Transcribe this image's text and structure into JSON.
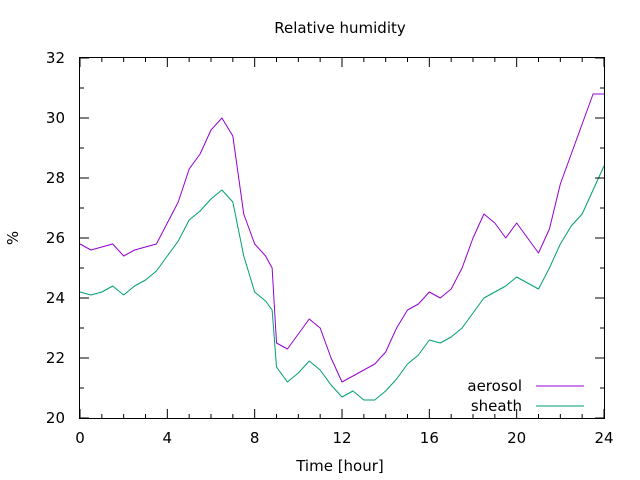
{
  "chart_data": {
    "type": "line",
    "title": "Relative humidity",
    "xlabel": "Time [hour]",
    "ylabel": "%",
    "xlim": [
      0,
      24
    ],
    "ylim": [
      20,
      32
    ],
    "x_ticks": [
      0,
      4,
      8,
      12,
      16,
      20,
      24
    ],
    "y_ticks": [
      20,
      22,
      24,
      26,
      28,
      30,
      32
    ],
    "grid": false,
    "legend_position": "bottom-right",
    "series": [
      {
        "name": "aerosol",
        "color": "#9400d3",
        "x": [
          0,
          0.5,
          1,
          1.5,
          2,
          2.5,
          3,
          3.5,
          4,
          4.5,
          5,
          5.5,
          6,
          6.5,
          7,
          7.5,
          8,
          8.5,
          8.8,
          9,
          9.5,
          10,
          10.5,
          11,
          11.5,
          12,
          12.5,
          13,
          13.5,
          14,
          14.5,
          15,
          15.5,
          16,
          16.5,
          17,
          17.5,
          18,
          18.5,
          19,
          19.5,
          20,
          20.5,
          21,
          21.5,
          22,
          22.5,
          23,
          23.5,
          24
        ],
        "values": [
          25.8,
          25.6,
          25.7,
          25.8,
          25.4,
          25.6,
          25.7,
          25.8,
          26.5,
          27.2,
          28.3,
          28.8,
          29.6,
          30.0,
          29.4,
          26.8,
          25.8,
          25.4,
          25.0,
          22.5,
          22.3,
          22.8,
          23.3,
          23.0,
          22.0,
          21.2,
          21.4,
          21.6,
          21.8,
          22.2,
          23.0,
          23.6,
          23.8,
          24.2,
          24.0,
          24.3,
          25.0,
          26.0,
          26.8,
          26.5,
          26.0,
          26.5,
          26.0,
          25.5,
          26.3,
          27.8,
          28.8,
          29.8,
          30.8,
          30.8
        ]
      },
      {
        "name": "sheath",
        "color": "#009e73",
        "x": [
          0,
          0.5,
          1,
          1.5,
          2,
          2.5,
          3,
          3.5,
          4,
          4.5,
          5,
          5.5,
          6,
          6.5,
          7,
          7.5,
          8,
          8.5,
          8.8,
          9,
          9.5,
          10,
          10.5,
          11,
          11.5,
          12,
          12.5,
          13,
          13.5,
          14,
          14.5,
          15,
          15.5,
          16,
          16.5,
          17,
          17.5,
          18,
          18.5,
          19,
          19.5,
          20,
          20.5,
          21,
          21.5,
          22,
          22.5,
          23,
          23.5,
          24
        ],
        "values": [
          24.2,
          24.1,
          24.2,
          24.4,
          24.1,
          24.4,
          24.6,
          24.9,
          25.4,
          25.9,
          26.6,
          26.9,
          27.3,
          27.6,
          27.2,
          25.4,
          24.2,
          23.9,
          23.6,
          21.7,
          21.2,
          21.5,
          21.9,
          21.6,
          21.1,
          20.7,
          20.9,
          20.6,
          20.6,
          20.9,
          21.3,
          21.8,
          22.1,
          22.6,
          22.5,
          22.7,
          23.0,
          23.5,
          24.0,
          24.2,
          24.4,
          24.7,
          24.5,
          24.3,
          25.0,
          25.8,
          26.4,
          26.8,
          27.6,
          28.4
        ]
      }
    ]
  }
}
